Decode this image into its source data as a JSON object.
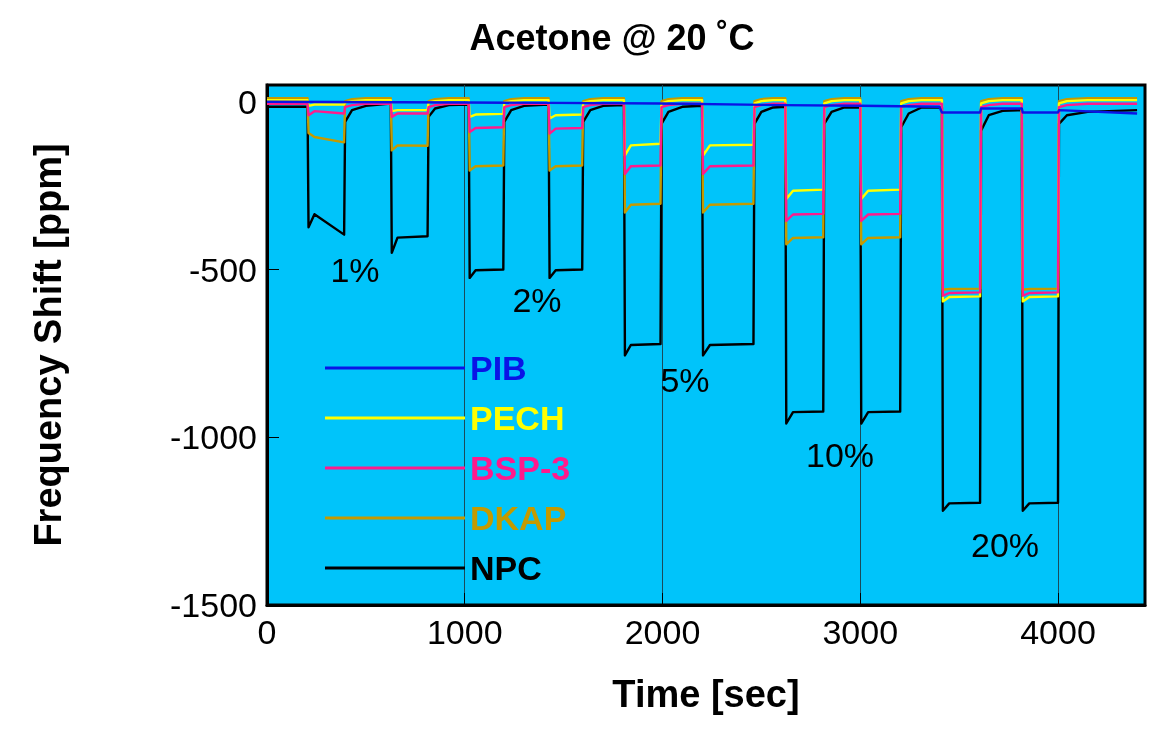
{
  "chart_data": {
    "type": "line",
    "title": "Acetone @ 20 ˚C",
    "xlabel": "Time [sec]",
    "ylabel": "Frequency Shift [ppm]",
    "xlim": [
      0,
      4440
    ],
    "ylim": [
      -1500,
      50
    ],
    "xticks": [
      0,
      1000,
      2000,
      3000,
      4000
    ],
    "yticks": [
      0,
      -500,
      -1000,
      -1500
    ],
    "grid": "x",
    "legend": "bottom left",
    "marker": "none",
    "line_style": "solid",
    "x": [
      0,
      205,
      210,
      240,
      390,
      395,
      430,
      500,
      626,
      631,
      660,
      812,
      817,
      850,
      920,
      1020,
      1025,
      1055,
      1195,
      1200,
      1235,
      1300,
      1424,
      1429,
      1460,
      1594,
      1599,
      1635,
      1700,
      1805,
      1810,
      1840,
      1990,
      1995,
      2030,
      2100,
      2200,
      2205,
      2240,
      2460,
      2465,
      2500,
      2560,
      2621,
      2626,
      2660,
      2813,
      2818,
      2855,
      2920,
      3000,
      3005,
      3040,
      3202,
      3207,
      3245,
      3310,
      3413,
      3418,
      3450,
      3606,
      3611,
      3650,
      3720,
      3817,
      3822,
      3855,
      4000,
      4005,
      4045,
      4150,
      4400
    ],
    "series": [
      {
        "name": "PIB",
        "color": "#0a14e6",
        "x": [
          0,
          1000,
          2000,
          2600,
          3000,
          3400,
          3413,
          3606,
          3611,
          3817,
          3822,
          4000,
          4005,
          4400
        ],
        "values": [
          0,
          -2,
          -5,
          -10,
          -12,
          -15,
          -32,
          -32,
          -20,
          -20,
          -32,
          -32,
          -25,
          -35
        ]
      },
      {
        "name": "PECH",
        "color": "#ffff00",
        "values": [
          5,
          5,
          -12,
          -8,
          -8,
          -2,
          2,
          5,
          5,
          -28,
          -25,
          -25,
          -2,
          2,
          5,
          5,
          -45,
          -38,
          -36,
          -3,
          2,
          5,
          5,
          -50,
          -40,
          -38,
          -3,
          2,
          5,
          5,
          -160,
          -130,
          -125,
          -5,
          2,
          5,
          5,
          -160,
          -130,
          -128,
          -5,
          2,
          5,
          5,
          -290,
          -265,
          -262,
          -5,
          2,
          5,
          5,
          -290,
          -265,
          -262,
          -5,
          2,
          5,
          5,
          -595,
          -582,
          -580,
          -5,
          2,
          5,
          5,
          -595,
          -582,
          -580,
          -5,
          2,
          5,
          5
        ]
      },
      {
        "name": "BSP-3",
        "color": "#ff1a8c",
        "values": [
          -6,
          -6,
          -40,
          -28,
          -35,
          -16,
          -10,
          -6,
          -6,
          -45,
          -35,
          -35,
          -16,
          -10,
          -6,
          -6,
          -90,
          -78,
          -76,
          -16,
          -10,
          -6,
          -6,
          -95,
          -80,
          -78,
          -16,
          -10,
          -6,
          -6,
          -215,
          -192,
          -190,
          -16,
          -10,
          -6,
          -6,
          -215,
          -192,
          -190,
          -16,
          -10,
          -6,
          -6,
          -355,
          -336,
          -334,
          -16,
          -10,
          -6,
          -6,
          -355,
          -336,
          -334,
          -16,
          -10,
          -6,
          -6,
          -578,
          -570,
          -568,
          -16,
          -10,
          -6,
          -6,
          -578,
          -570,
          -568,
          -16,
          -10,
          -6,
          -6
        ]
      },
      {
        "name": "DKAP",
        "color": "#c49a00",
        "values": [
          11,
          11,
          -93,
          -105,
          -121,
          2,
          8,
          11,
          11,
          -145,
          -130,
          -131,
          2,
          8,
          11,
          11,
          -205,
          -192,
          -190,
          2,
          8,
          11,
          11,
          -205,
          -192,
          -190,
          2,
          8,
          11,
          11,
          -330,
          -307,
          -304,
          2,
          8,
          11,
          11,
          -330,
          -307,
          -304,
          2,
          8,
          11,
          11,
          -425,
          -406,
          -404,
          2,
          8,
          11,
          11,
          -425,
          -406,
          -404,
          2,
          8,
          11,
          11,
          -560,
          -558,
          -557,
          2,
          8,
          11,
          11,
          -560,
          -558,
          -557,
          2,
          8,
          11,
          11
        ]
      },
      {
        "name": "NPC",
        "color": "#000000",
        "values": [
          -15,
          -15,
          -374,
          -335,
          -396,
          -60,
          -25,
          -12,
          -5,
          -450,
          -405,
          -401,
          -45,
          -20,
          -10,
          -8,
          -525,
          -502,
          -500,
          -60,
          -25,
          -12,
          -8,
          -525,
          -502,
          -500,
          -60,
          -25,
          -12,
          -10,
          -756,
          -725,
          -722,
          -66,
          -30,
          -15,
          -12,
          -756,
          -725,
          -722,
          -66,
          -30,
          -17,
          -15,
          -959,
          -925,
          -923,
          -66,
          -30,
          -17,
          -17,
          -959,
          -925,
          -923,
          -76,
          -35,
          -17,
          -17,
          -1219,
          -1197,
          -1195,
          -86,
          -40,
          -27,
          -25,
          -1219,
          -1197,
          -1195,
          -66,
          -40,
          -30,
          -25
        ]
      }
    ],
    "annotations": [
      "1%",
      "2%",
      "5%",
      "10%",
      "20%"
    ]
  }
}
